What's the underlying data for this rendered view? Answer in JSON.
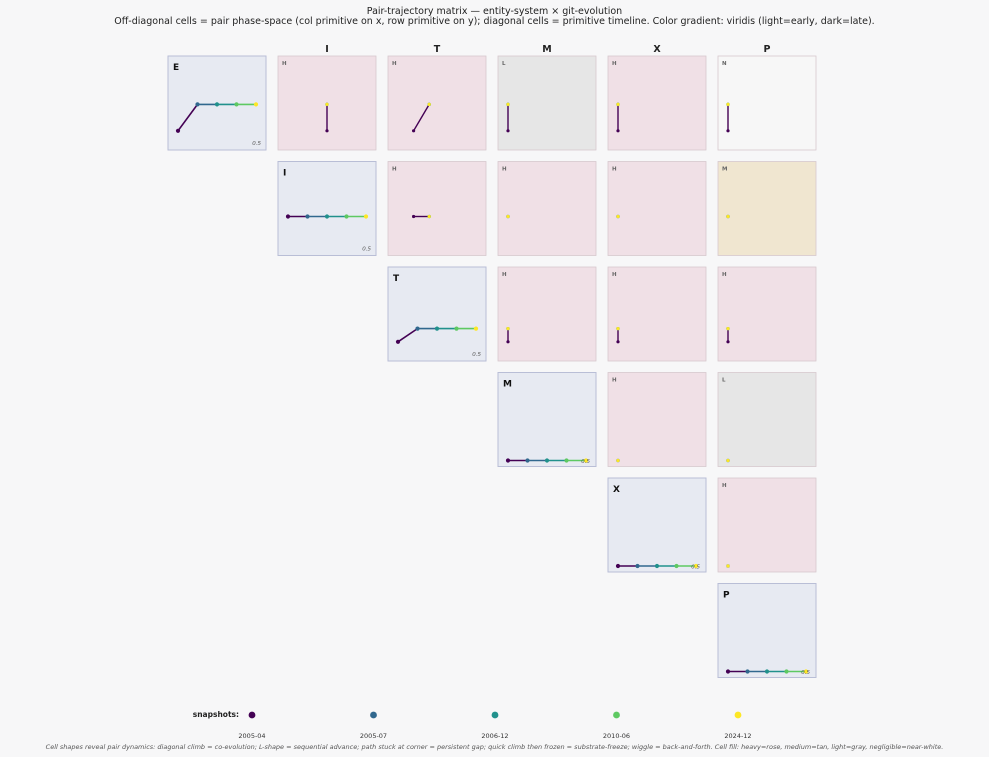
{
  "title": "Pair-trajectory matrix — entity-system × git-evolution",
  "subtitle": "Off-diagonal cells = pair phase-space (col primitive on x, row primitive on y); diagonal cells = primitive timeline. Color gradient: viridis (light=early, dark=late).",
  "footnote": "Cell shapes reveal pair dynamics: diagonal climb = co-evolution; L-shape = sequential advance; path stuck at corner = persistent gap; quick climb then frozen = substrate-freeze; wiggle = back-and-forth. Cell fill: heavy=rose, medium=tan, light=gray, negligible=near-white.",
  "colors": {
    "heavy": "#f0e0e6",
    "medium": "#f0e6d0",
    "light": "#e6e6e6",
    "negligible": "#f7f7f7",
    "diagonal": "#e7eaf2",
    "snapshot_colors": [
      "#440154",
      "#31688e",
      "#21918c",
      "#5ec962",
      "#fde725"
    ]
  },
  "chart_data": {
    "type": "scatter",
    "primitives": [
      "E",
      "I",
      "T",
      "M",
      "X",
      "P"
    ],
    "col_headers": [
      "I",
      "T",
      "M",
      "X",
      "P"
    ],
    "x": [
      "2005-04",
      "2005-07",
      "2006-12",
      "2010-06",
      "2024-12"
    ],
    "legend": {
      "label": "snapshots:",
      "placement": "bottom"
    },
    "axis_range": [
      0,
      1
    ],
    "diagonal": [
      {
        "primitive": "E",
        "values": [
          0.2,
          0.6,
          0.6,
          0.6,
          0.6
        ],
        "tick": "0.5"
      },
      {
        "primitive": "I",
        "values": [
          0.5,
          0.5,
          0.5,
          0.5,
          0.5
        ],
        "tick": "0.5"
      },
      {
        "primitive": "T",
        "values": [
          0.2,
          0.4,
          0.4,
          0.4,
          0.4
        ],
        "tick": "0.5"
      },
      {
        "primitive": "M",
        "values": [
          0.0,
          0.0,
          0.0,
          0.0,
          0.0
        ],
        "tick": "0.5"
      },
      {
        "primitive": "X",
        "values": [
          0.0,
          0.0,
          0.0,
          0.0,
          0.0
        ],
        "tick": "0.5"
      },
      {
        "primitive": "P",
        "values": [
          0.0,
          0.0,
          0.0,
          0.0,
          0.0
        ],
        "tick": "0.5"
      }
    ],
    "pairs": [
      {
        "row": "E",
        "col": "I",
        "weight": "H",
        "fill": "heavy"
      },
      {
        "row": "E",
        "col": "T",
        "weight": "H",
        "fill": "heavy"
      },
      {
        "row": "E",
        "col": "M",
        "weight": "L",
        "fill": "light"
      },
      {
        "row": "E",
        "col": "X",
        "weight": "H",
        "fill": "heavy"
      },
      {
        "row": "E",
        "col": "P",
        "weight": "N",
        "fill": "negligible"
      },
      {
        "row": "I",
        "col": "T",
        "weight": "H",
        "fill": "heavy"
      },
      {
        "row": "I",
        "col": "M",
        "weight": "H",
        "fill": "heavy"
      },
      {
        "row": "I",
        "col": "X",
        "weight": "H",
        "fill": "heavy"
      },
      {
        "row": "I",
        "col": "P",
        "weight": "M",
        "fill": "medium"
      },
      {
        "row": "T",
        "col": "M",
        "weight": "H",
        "fill": "heavy"
      },
      {
        "row": "T",
        "col": "X",
        "weight": "H",
        "fill": "heavy"
      },
      {
        "row": "T",
        "col": "P",
        "weight": "H",
        "fill": "heavy"
      },
      {
        "row": "M",
        "col": "X",
        "weight": "H",
        "fill": "heavy"
      },
      {
        "row": "M",
        "col": "P",
        "weight": "L",
        "fill": "light"
      },
      {
        "row": "X",
        "col": "P",
        "weight": "H",
        "fill": "heavy"
      }
    ]
  }
}
